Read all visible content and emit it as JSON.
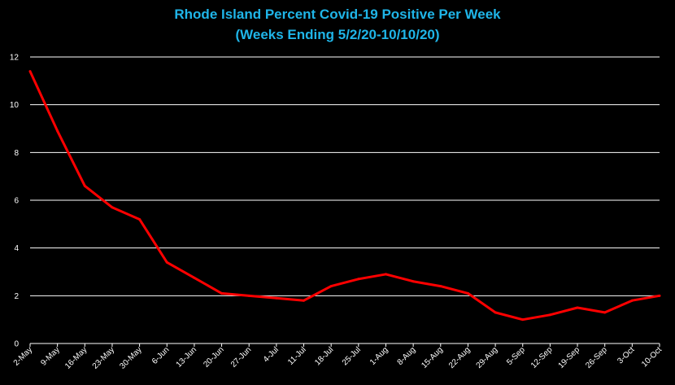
{
  "chart_data": {
    "type": "line",
    "title_line1": "Rhode Island Percent Covid-19 Positive Per Week",
    "title_line2": "(Weeks Ending 5/2/20-10/10/20)",
    "xlabel": "",
    "ylabel": "",
    "ylim": [
      0,
      12
    ],
    "yticks": [
      0,
      2,
      4,
      6,
      8,
      10,
      12
    ],
    "grid": true,
    "legend": "none",
    "categories": [
      "2-May",
      "9-May",
      "16-May",
      "23-May",
      "30-May",
      "6-Jun",
      "13-Jun",
      "20-Jun",
      "27-Jun",
      "4-Jul",
      "11-Jul",
      "18-Jul",
      "25-Jul",
      "1-Aug",
      "8-Aug",
      "15-Aug",
      "22-Aug",
      "29-Aug",
      "5-Sep",
      "12-Sep",
      "19-Sep",
      "26-Sep",
      "3-Oct",
      "10-Oct"
    ],
    "series": [
      {
        "values": [
          11.4,
          8.9,
          6.6,
          5.7,
          5.2,
          3.4,
          2.75,
          2.1,
          2.0,
          1.9,
          1.8,
          2.4,
          2.7,
          2.9,
          2.6,
          2.4,
          2.1,
          1.3,
          1.0,
          1.2,
          1.5,
          1.3,
          1.8,
          2.0
        ],
        "color": "#ff0000"
      }
    ],
    "colors": {
      "background": "#000000",
      "title": "#1fb5e8",
      "gridline": "#ffffff",
      "text": "#ffffff",
      "line": "#ff0000"
    }
  }
}
